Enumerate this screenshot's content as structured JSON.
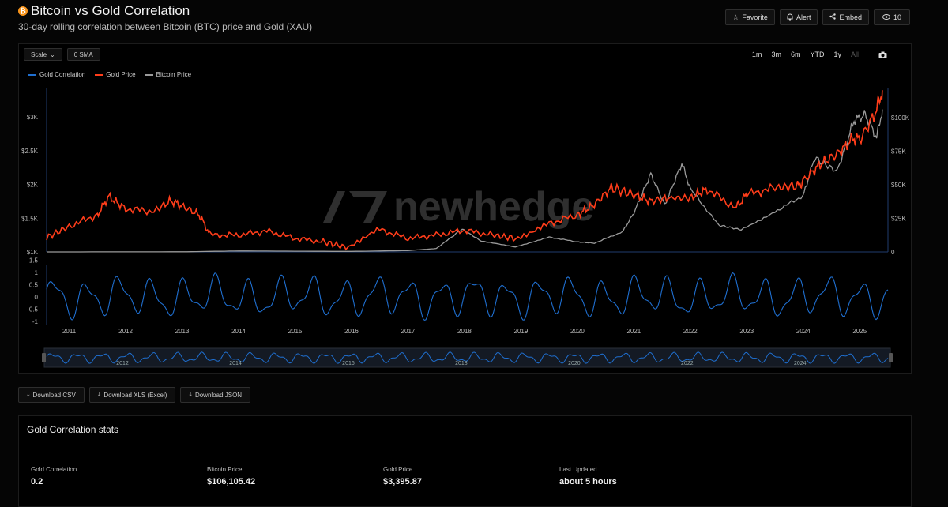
{
  "header": {
    "logo_glyph": "₿",
    "title": "Bitcoin vs Gold Correlation",
    "subtitle": "30-day rolling correlation between Bitcoin (BTC) price and Gold (XAU)"
  },
  "actions": {
    "favorite": "Favorite",
    "alert": "Alert",
    "embed": "Embed",
    "views": "10"
  },
  "toolbar": {
    "scale": "Scale",
    "sma": "0 SMA",
    "ranges": [
      "1m",
      "3m",
      "6m",
      "YTD",
      "1y",
      "All"
    ]
  },
  "legend": [
    {
      "label": "Gold Correlation",
      "color": "#1f6fd0"
    },
    {
      "label": "Gold Price",
      "color": "#ff3d1a"
    },
    {
      "label": "Bitcoin Price",
      "color": "#9a9a9a"
    }
  ],
  "watermark": "newhedge",
  "chart_data": {
    "type": "line",
    "x_range": [
      2010.6,
      2025.5
    ],
    "left_axis": {
      "ticks": [
        "$3K",
        "$2.5K",
        "$2K",
        "$1.5K",
        "$1K"
      ],
      "values": [
        3000,
        2500,
        2000,
        1500,
        1000
      ]
    },
    "right_axis": {
      "ticks": [
        "$100K",
        "$75K",
        "$50K",
        "$25K",
        "0"
      ],
      "values": [
        100000,
        75000,
        50000,
        25000,
        0
      ]
    },
    "corr_axis": {
      "ticks": [
        "1.5",
        "1",
        "0.5",
        "0",
        "-0.5",
        "-1"
      ],
      "values": [
        1.5,
        1,
        0.5,
        0,
        -0.5,
        -1
      ]
    },
    "x_ticks": [
      "2011",
      "2012",
      "2013",
      "2014",
      "2015",
      "2016",
      "2017",
      "2018",
      "2019",
      "2020",
      "2021",
      "2022",
      "2023",
      "2024",
      "2025"
    ],
    "navigator_ticks": [
      "2012",
      "2014",
      "2016",
      "2018",
      "2020",
      "2022",
      "2024"
    ],
    "series": [
      {
        "name": "Gold Price",
        "color": "#ff3d1a",
        "x": [
          2010.6,
          2011.0,
          2011.5,
          2011.7,
          2012.0,
          2012.5,
          2012.8,
          2013.0,
          2013.3,
          2013.5,
          2014.0,
          2014.5,
          2015.0,
          2015.5,
          2015.9,
          2016.5,
          2017.0,
          2017.5,
          2018.0,
          2018.5,
          2018.9,
          2019.5,
          2020.0,
          2020.3,
          2020.6,
          2021.0,
          2021.3,
          2021.6,
          2022.0,
          2022.3,
          2022.8,
          2023.0,
          2023.5,
          2023.9,
          2024.0,
          2024.3,
          2024.6,
          2024.9,
          2025.0,
          2025.3,
          2025.4
        ],
        "values": [
          1210,
          1380,
          1550,
          1820,
          1640,
          1600,
          1760,
          1680,
          1550,
          1250,
          1250,
          1310,
          1200,
          1150,
          1070,
          1330,
          1200,
          1250,
          1320,
          1250,
          1200,
          1420,
          1550,
          1700,
          1950,
          1850,
          1750,
          1800,
          1800,
          1930,
          1650,
          1850,
          1950,
          1980,
          2050,
          2300,
          2450,
          2700,
          2650,
          3100,
          3395
        ]
      },
      {
        "name": "Bitcoin Price",
        "color": "#9a9a9a",
        "x": [
          2010.6,
          2013.0,
          2014.0,
          2016.0,
          2017.0,
          2017.5,
          2017.96,
          2018.3,
          2018.9,
          2019.5,
          2020.0,
          2020.3,
          2020.8,
          2021.0,
          2021.3,
          2021.55,
          2021.85,
          2022.0,
          2022.5,
          2022.9,
          2023.5,
          2024.0,
          2024.2,
          2024.6,
          2024.9,
          2025.1,
          2025.3,
          2025.4
        ],
        "values": [
          0,
          100,
          700,
          400,
          1000,
          2500,
          17000,
          8000,
          3700,
          11000,
          7500,
          6500,
          15000,
          29000,
          58000,
          35000,
          66000,
          47000,
          20000,
          16500,
          30000,
          42000,
          70000,
          60000,
          98000,
          102000,
          85000,
          106105
        ]
      },
      {
        "name": "Gold Correlation",
        "color": "#1f6fd0",
        "latest": 0.2
      }
    ]
  },
  "downloads": [
    "Download CSV",
    "Download XLS (Excel)",
    "Download JSON"
  ],
  "stats": {
    "title": "Gold Correlation stats",
    "items": [
      {
        "label": "Gold Correlation",
        "value": "0.2"
      },
      {
        "label": "Bitcoin Price",
        "value": "$106,105.42"
      },
      {
        "label": "Gold Price",
        "value": "$3,395.87"
      },
      {
        "label": "Last Updated",
        "value": "about 5 hours"
      }
    ]
  }
}
